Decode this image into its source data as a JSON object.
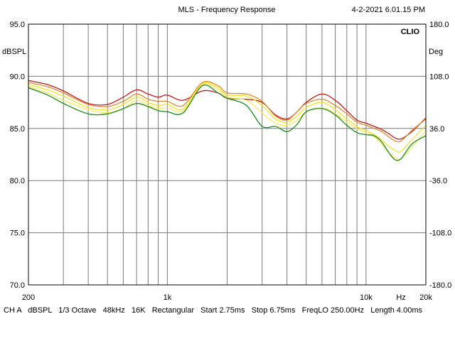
{
  "chart_data": {
    "type": "line",
    "title": "MLS - Frequency Response",
    "timestamp": "4-2-2021 6.01.15 PM",
    "brand": "CLIO",
    "left_unit": "dBSPL",
    "right_unit": "Deg",
    "xscale": "log",
    "xlim": [
      200,
      20000
    ],
    "ylim": [
      70,
      95
    ],
    "y_ticks": [
      "95.0",
      "90.0",
      "85.0",
      "80.0",
      "75.0",
      "70.0"
    ],
    "y2_ticks": [
      "180.0",
      "108.0",
      "36.0",
      "-36.0",
      "-108.0",
      "-180.0"
    ],
    "x_ticks": [
      {
        "value": 200,
        "label": "200"
      },
      {
        "value": 1000,
        "label": "1k"
      },
      {
        "value": 10000,
        "label": "10k"
      },
      {
        "value": 15000,
        "label": "Hz"
      },
      {
        "value": 20000,
        "label": "20k"
      }
    ],
    "footer": "CH A   dBSPL   1/3 Octave   48kHz   16K   Rectangular   Start 2.75ms   Stop 6.75ms   FreqLO 250.00Hz   Length 4.00ms",
    "series": [
      {
        "name": "red",
        "color": "#c01818",
        "x": [
          200,
          250,
          300,
          400,
          500,
          600,
          700,
          800,
          900,
          1000,
          1200,
          1500,
          1800,
          2000,
          2500,
          3000,
          3500,
          4000,
          4500,
          5000,
          6000,
          7000,
          8000,
          9000,
          10000,
          11000,
          12000,
          13000,
          14000,
          15000,
          17000,
          20000
        ],
        "y": [
          89.6,
          89.2,
          88.6,
          87.4,
          87.3,
          88.0,
          88.7,
          88.3,
          88.0,
          88.2,
          87.7,
          88.6,
          88.4,
          87.9,
          87.8,
          87.5,
          86.3,
          85.9,
          86.6,
          87.5,
          88.3,
          87.7,
          86.7,
          85.8,
          85.5,
          85.2,
          84.9,
          84.5,
          84.1,
          84.0,
          84.7,
          86.0
        ]
      },
      {
        "name": "orange",
        "color": "#e08a30",
        "x": [
          200,
          250,
          300,
          400,
          500,
          600,
          700,
          800,
          900,
          1000,
          1200,
          1500,
          1800,
          2000,
          2500,
          3000,
          3500,
          4000,
          4500,
          5000,
          6000,
          7000,
          8000,
          9000,
          10000,
          11000,
          12000,
          13000,
          14000,
          15000,
          17000,
          20000
        ],
        "y": [
          89.4,
          89.0,
          88.4,
          87.3,
          87.1,
          87.6,
          88.3,
          87.8,
          87.6,
          87.6,
          87.2,
          89.4,
          89.1,
          88.4,
          88.3,
          87.6,
          86.2,
          85.8,
          86.6,
          87.4,
          87.8,
          87.2,
          86.4,
          85.6,
          85.3,
          85.0,
          84.7,
          84.2,
          83.8,
          83.8,
          84.8,
          85.9
        ]
      },
      {
        "name": "yellow",
        "color": "#f2e22a",
        "x": [
          200,
          250,
          300,
          400,
          500,
          600,
          700,
          800,
          900,
          1000,
          1200,
          1500,
          1800,
          2000,
          2500,
          3000,
          3500,
          4000,
          4500,
          5000,
          6000,
          7000,
          8000,
          9000,
          10000,
          11000,
          12000,
          13000,
          14000,
          15000,
          17000,
          20000
        ],
        "y": [
          89.2,
          88.7,
          88.1,
          87.0,
          86.8,
          87.3,
          88.0,
          87.5,
          87.2,
          87.3,
          86.9,
          89.3,
          88.9,
          88.2,
          88.1,
          87.2,
          85.9,
          85.6,
          86.2,
          87.0,
          87.5,
          86.8,
          85.9,
          85.2,
          84.8,
          84.4,
          83.9,
          83.3,
          82.9,
          82.8,
          83.9,
          85.3
        ]
      },
      {
        "name": "yellow-2",
        "color": "#f6ea5c",
        "x": [
          200,
          250,
          300,
          400,
          500,
          600,
          700,
          800,
          900,
          1000,
          1200,
          1500,
          1800,
          2000,
          2500,
          3000,
          3500,
          4000,
          4500,
          5000,
          6000,
          7000,
          8000,
          9000,
          10000,
          11000,
          12000,
          13000,
          14000,
          15000,
          17000,
          20000
        ],
        "y": [
          89.0,
          88.4,
          87.7,
          86.8,
          86.5,
          86.9,
          87.7,
          87.2,
          86.9,
          87.0,
          86.7,
          89.2,
          88.7,
          88.0,
          87.7,
          86.5,
          85.5,
          85.3,
          85.8,
          86.6,
          87.0,
          86.4,
          85.6,
          85.0,
          84.6,
          84.2,
          83.5,
          82.7,
          82.2,
          82.1,
          83.2,
          84.8
        ]
      },
      {
        "name": "green",
        "color": "#1c8a1c",
        "x": [
          200,
          250,
          300,
          400,
          500,
          600,
          700,
          800,
          900,
          1000,
          1200,
          1500,
          1800,
          2000,
          2500,
          3000,
          3500,
          4000,
          4500,
          5000,
          6000,
          7000,
          8000,
          9000,
          10000,
          11000,
          12000,
          13000,
          14000,
          15000,
          17000,
          20000
        ],
        "y": [
          88.9,
          88.2,
          87.4,
          86.4,
          86.4,
          86.9,
          87.4,
          87.1,
          86.7,
          86.6,
          86.5,
          89.1,
          88.4,
          87.9,
          87.2,
          85.2,
          85.2,
          84.7,
          85.4,
          86.6,
          86.9,
          86.3,
          85.3,
          84.6,
          84.4,
          84.3,
          83.7,
          82.7,
          82.0,
          82.1,
          83.5,
          84.3
        ]
      }
    ]
  }
}
